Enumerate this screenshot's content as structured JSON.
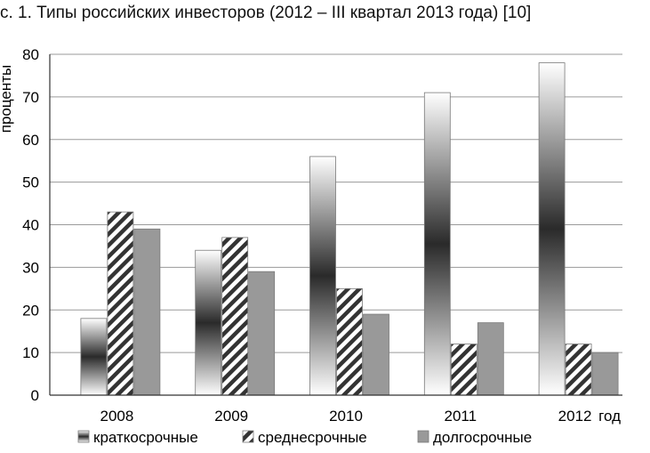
{
  "title": "с. 1. Типы российских инвесторов (2012 – III квартал 2013 года) [10]",
  "chart_data": {
    "type": "bar",
    "title": "с. 1. Типы российских инвесторов (2012 – III квартал 2013 года) [10]",
    "xlabel": "год",
    "ylabel": "проценты",
    "ylim": [
      0,
      80
    ],
    "yticks": [
      0,
      10,
      20,
      30,
      40,
      50,
      60,
      70,
      80
    ],
    "grid": true,
    "legend_position": "bottom",
    "categories": [
      "2008",
      "2009",
      "2010",
      "2011",
      "2012"
    ],
    "series": [
      {
        "name": "краткосрочные",
        "values": [
          18,
          34,
          56,
          71,
          78
        ],
        "fill": "gradient-white-black-white"
      },
      {
        "name": "среднесрочные",
        "values": [
          43,
          37,
          25,
          12,
          12
        ],
        "fill": "diagonal-hatch"
      },
      {
        "name": "долгосрочные",
        "values": [
          39,
          29,
          19,
          17,
          10
        ],
        "fill": "#999999"
      }
    ]
  }
}
